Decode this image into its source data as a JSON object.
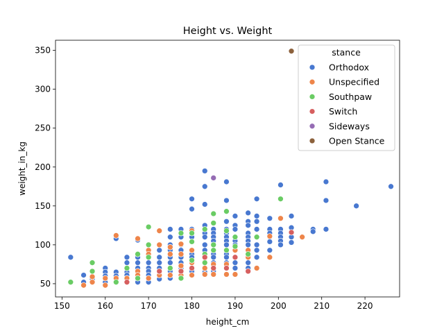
{
  "chart_data": {
    "type": "scatter",
    "title": "Height vs. Weight",
    "xlabel": "height_cm",
    "ylabel": "weight_in_kg",
    "xlim": [
      148.5,
      228
    ],
    "ylim": [
      33,
      363
    ],
    "xticks": [
      150,
      160,
      170,
      180,
      190,
      200,
      210,
      220
    ],
    "yticks": [
      50,
      100,
      150,
      200,
      250,
      300,
      350
    ],
    "grid": false,
    "legend": {
      "title": "stance",
      "placement": "top-right"
    },
    "series": [
      {
        "name": "Orthodox",
        "color": "#4878d0",
        "points": [
          [
            152,
            84
          ],
          [
            155,
            61
          ],
          [
            155,
            52
          ],
          [
            157,
            56
          ],
          [
            157,
            52
          ],
          [
            160,
            70
          ],
          [
            160,
            65
          ],
          [
            160,
            60
          ],
          [
            160,
            56
          ],
          [
            160,
            52
          ],
          [
            162.5,
            108
          ],
          [
            162.5,
            65
          ],
          [
            162.5,
            60
          ],
          [
            162.5,
            56
          ],
          [
            165,
            84
          ],
          [
            165,
            77
          ],
          [
            165,
            70
          ],
          [
            165,
            65
          ],
          [
            165,
            61
          ],
          [
            165,
            57
          ],
          [
            167.5,
            106
          ],
          [
            167.5,
            84
          ],
          [
            167.5,
            77
          ],
          [
            167.5,
            70
          ],
          [
            167.5,
            65
          ],
          [
            167.5,
            61
          ],
          [
            167.5,
            56
          ],
          [
            167.5,
            52
          ],
          [
            170,
            84
          ],
          [
            170,
            77
          ],
          [
            170,
            70
          ],
          [
            170,
            66
          ],
          [
            170,
            61
          ],
          [
            170,
            57
          ],
          [
            170,
            52
          ],
          [
            172.5,
            93
          ],
          [
            172.5,
            84
          ],
          [
            172.5,
            77
          ],
          [
            172.5,
            70
          ],
          [
            172.5,
            65
          ],
          [
            172.5,
            61
          ],
          [
            172.5,
            56
          ],
          [
            175,
            120
          ],
          [
            175,
            110
          ],
          [
            175,
            100
          ],
          [
            175,
            93
          ],
          [
            175,
            84
          ],
          [
            175,
            77
          ],
          [
            175,
            70
          ],
          [
            175,
            66
          ],
          [
            175,
            61
          ],
          [
            175,
            57
          ],
          [
            177.5,
            120
          ],
          [
            177.5,
            110
          ],
          [
            177.5,
            100
          ],
          [
            177.5,
            93
          ],
          [
            177.5,
            84
          ],
          [
            177.5,
            77
          ],
          [
            177.5,
            70
          ],
          [
            177.5,
            66
          ],
          [
            177.5,
            61
          ],
          [
            180,
            159
          ],
          [
            180,
            146
          ],
          [
            180,
            120
          ],
          [
            180,
            110
          ],
          [
            180,
            104
          ],
          [
            180,
            93
          ],
          [
            180,
            88
          ],
          [
            180,
            84
          ],
          [
            180,
            77
          ],
          [
            180,
            70
          ],
          [
            180,
            66
          ],
          [
            180,
            61
          ],
          [
            183,
            195
          ],
          [
            183,
            175
          ],
          [
            183,
            152
          ],
          [
            183,
            125
          ],
          [
            183,
            115
          ],
          [
            183,
            110
          ],
          [
            183,
            100
          ],
          [
            183,
            93
          ],
          [
            183,
            84
          ],
          [
            183,
            77
          ],
          [
            183,
            70
          ],
          [
            183,
            65
          ],
          [
            185,
            120
          ],
          [
            185,
            115
          ],
          [
            185,
            110
          ],
          [
            185,
            105
          ],
          [
            185,
            100
          ],
          [
            185,
            93
          ],
          [
            185,
            88
          ],
          [
            185,
            84
          ],
          [
            185,
            77
          ],
          [
            185,
            70
          ],
          [
            185,
            66
          ],
          [
            188,
            181
          ],
          [
            188,
            157
          ],
          [
            188,
            130
          ],
          [
            188,
            120
          ],
          [
            188,
            115
          ],
          [
            188,
            110
          ],
          [
            188,
            105
          ],
          [
            188,
            100
          ],
          [
            188,
            93
          ],
          [
            188,
            88
          ],
          [
            188,
            84
          ],
          [
            188,
            77
          ],
          [
            188,
            70
          ],
          [
            190,
            137
          ],
          [
            190,
            125
          ],
          [
            190,
            120
          ],
          [
            190,
            110
          ],
          [
            190,
            105
          ],
          [
            190,
            100
          ],
          [
            190,
            93
          ],
          [
            190,
            84
          ],
          [
            190,
            77
          ],
          [
            190,
            70
          ],
          [
            193,
            141
          ],
          [
            193,
            130
          ],
          [
            193,
            125
          ],
          [
            193,
            115
          ],
          [
            193,
            110
          ],
          [
            193,
            105
          ],
          [
            193,
            100
          ],
          [
            193,
            93
          ],
          [
            193,
            84
          ],
          [
            193,
            77
          ],
          [
            193,
            70
          ],
          [
            195,
            159
          ],
          [
            195,
            137
          ],
          [
            195,
            130
          ],
          [
            195,
            120
          ],
          [
            195,
            110
          ],
          [
            195,
            100
          ],
          [
            195,
            93
          ],
          [
            195,
            84
          ],
          [
            198,
            134
          ],
          [
            198,
            120
          ],
          [
            198,
            115
          ],
          [
            198,
            110
          ],
          [
            198,
            104
          ],
          [
            198,
            93
          ],
          [
            200.5,
            177
          ],
          [
            200.5,
            120
          ],
          [
            200.5,
            115
          ],
          [
            200.5,
            110
          ],
          [
            200.5,
            105
          ],
          [
            200.5,
            100
          ],
          [
            203,
            137
          ],
          [
            203,
            122
          ],
          [
            203,
            115
          ],
          [
            203,
            110
          ],
          [
            203,
            103
          ],
          [
            208,
            120
          ],
          [
            208,
            117
          ],
          [
            211,
            181
          ],
          [
            211,
            157
          ],
          [
            211,
            120
          ],
          [
            218,
            150
          ],
          [
            226,
            175
          ]
        ]
      },
      {
        "name": "Unspecified",
        "color": "#ee854a",
        "points": [
          [
            155,
            48
          ],
          [
            157,
            52
          ],
          [
            157,
            59
          ],
          [
            160,
            48
          ],
          [
            160,
            57
          ],
          [
            162.5,
            112
          ],
          [
            162.5,
            57
          ],
          [
            165,
            57
          ],
          [
            165,
            52
          ],
          [
            167.5,
            108
          ],
          [
            167.5,
            66
          ],
          [
            167.5,
            61
          ],
          [
            170,
            93
          ],
          [
            170,
            88
          ],
          [
            170,
            57
          ],
          [
            172.5,
            118
          ],
          [
            172.5,
            100
          ],
          [
            172.5,
            61
          ],
          [
            175,
            97
          ],
          [
            175,
            88
          ],
          [
            175,
            61
          ],
          [
            177.5,
            101
          ],
          [
            177.5,
            88
          ],
          [
            177.5,
            73
          ],
          [
            177.5,
            61
          ],
          [
            180,
            118
          ],
          [
            180,
            93
          ],
          [
            180,
            77
          ],
          [
            180,
            61
          ],
          [
            183,
            62
          ],
          [
            183,
            70
          ],
          [
            183,
            78
          ],
          [
            185,
            62
          ],
          [
            185,
            75
          ],
          [
            188,
            62
          ],
          [
            188,
            75
          ],
          [
            190,
            93
          ],
          [
            190,
            62
          ],
          [
            193,
            93
          ],
          [
            193,
            84
          ],
          [
            195,
            70
          ],
          [
            198,
            111
          ],
          [
            198,
            84
          ],
          [
            200.5,
            134
          ],
          [
            203,
            116
          ],
          [
            205.5,
            110
          ]
        ]
      },
      {
        "name": "Southpaw",
        "color": "#6acc64",
        "points": [
          [
            152,
            52
          ],
          [
            157,
            77
          ],
          [
            157,
            66
          ],
          [
            162.5,
            52
          ],
          [
            165,
            70
          ],
          [
            167.5,
            88
          ],
          [
            167.5,
            57
          ],
          [
            170,
            123
          ],
          [
            170,
            100
          ],
          [
            170,
            84
          ],
          [
            172.5,
            66
          ],
          [
            175,
            70
          ],
          [
            177.5,
            115
          ],
          [
            177.5,
            57
          ],
          [
            180,
            115
          ],
          [
            180,
            104
          ],
          [
            180,
            80
          ],
          [
            183,
            120
          ],
          [
            183,
            88
          ],
          [
            183,
            77
          ],
          [
            185,
            140
          ],
          [
            185,
            128
          ],
          [
            185,
            100
          ],
          [
            185,
            93
          ],
          [
            188,
            143
          ],
          [
            188,
            118
          ],
          [
            188,
            93
          ],
          [
            190,
            110
          ],
          [
            190,
            98
          ],
          [
            193,
            88
          ],
          [
            195,
            110
          ],
          [
            200.5,
            159
          ]
        ]
      },
      {
        "name": "Switch",
        "color": "#d65f5f",
        "points": [
          [
            165,
            52
          ],
          [
            172.5,
            66
          ],
          [
            177.5,
            66
          ],
          [
            180,
            70
          ],
          [
            183,
            84
          ],
          [
            185,
            70
          ],
          [
            188,
            70
          ],
          [
            190,
            84
          ],
          [
            193,
            66
          ],
          [
            203,
            116
          ]
        ]
      },
      {
        "name": "Sideways",
        "color": "#956cb4",
        "points": [
          [
            185,
            186
          ]
        ]
      },
      {
        "name": "Open Stance",
        "color": "#8c613c",
        "points": [
          [
            203,
            349
          ]
        ]
      }
    ]
  }
}
